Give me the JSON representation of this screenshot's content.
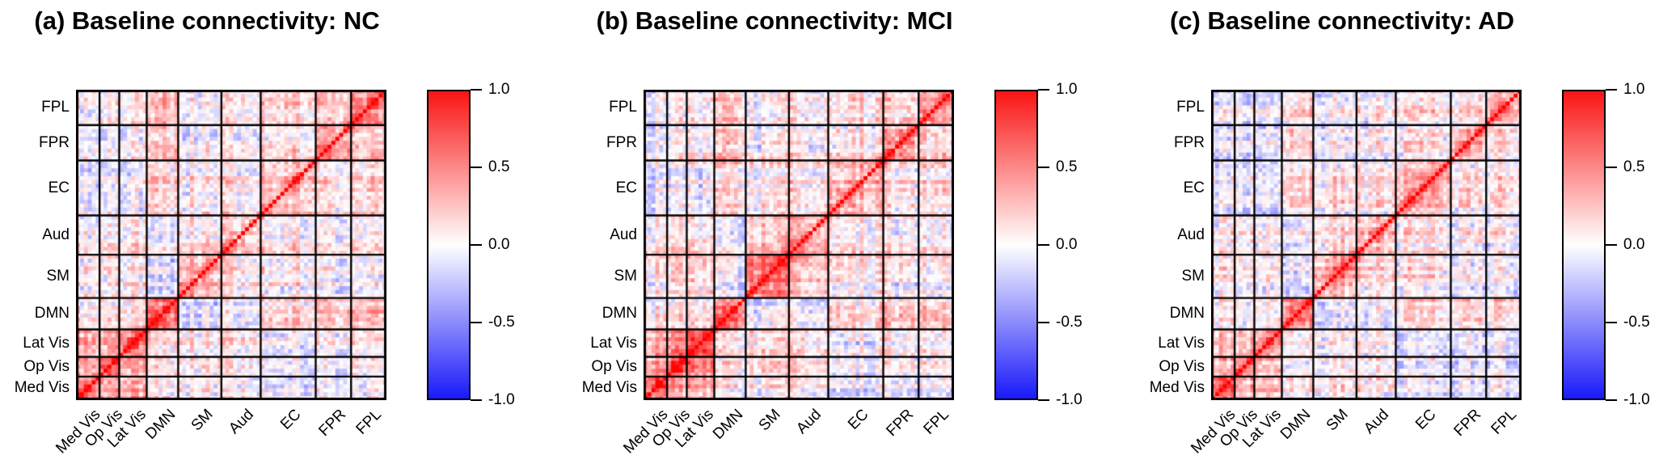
{
  "figure": {
    "background": "#ffffff",
    "description_visible_text_only": true
  },
  "chart_data": {
    "type": "heatmap",
    "subtype": "functional-connectivity-correlation-matrices",
    "colormap": {
      "negative": "#1919fa",
      "zero": "#ffffff",
      "positive": "#fa1414",
      "value_range": [
        -1.0,
        1.0
      ]
    },
    "colorbar": {
      "tick_labels": [
        "1.0",
        "0.5",
        "0.0",
        "-0.5",
        "-1.0"
      ],
      "tick_values": [
        1.0,
        0.5,
        0.0,
        -0.5,
        -1.0
      ],
      "orientation": "vertical",
      "position": "right-of-matrix"
    },
    "x_axis_order_left_to_right": [
      "Med Vis",
      "Op Vis",
      "Lat Vis",
      "DMN",
      "SM",
      "Aud",
      "EC",
      "FPR",
      "FPL"
    ],
    "y_axis_order_top_to_bottom": [
      "FPL",
      "FPR",
      "EC",
      "Aud",
      "SM",
      "DMN",
      "Lat Vis",
      "Op Vis",
      "Med Vis"
    ],
    "network_node_counts_x_order": [
      6,
      5,
      7,
      8,
      11,
      10,
      14,
      9,
      9
    ],
    "grid": "black block boundaries between networks, black outer border",
    "diagonal_value": 1.0,
    "panels": [
      {
        "id": "a",
        "title": "(a) Baseline connectivity: NC",
        "group": "NC",
        "seed": 11,
        "block_means_x_order": [
          [
            0.5,
            0.34,
            0.3,
            0.04,
            0.1,
            0.08,
            -0.06,
            -0.08,
            -0.05
          ],
          [
            0.34,
            0.48,
            0.32,
            0.02,
            0.12,
            0.1,
            -0.05,
            -0.06,
            -0.04
          ],
          [
            0.3,
            0.32,
            0.42,
            0.04,
            0.08,
            0.06,
            -0.08,
            -0.05,
            -0.03
          ],
          [
            0.04,
            0.02,
            0.04,
            0.36,
            -0.13,
            -0.09,
            0.1,
            0.13,
            0.13
          ],
          [
            0.1,
            0.12,
            0.08,
            -0.13,
            0.34,
            0.16,
            0.06,
            -0.03,
            -0.03
          ],
          [
            0.08,
            0.1,
            0.06,
            -0.09,
            0.16,
            0.24,
            0.09,
            0.02,
            0.02
          ],
          [
            -0.06,
            -0.05,
            -0.08,
            0.1,
            0.06,
            0.09,
            0.22,
            0.06,
            0.09
          ],
          [
            -0.08,
            -0.06,
            -0.05,
            0.13,
            -0.03,
            0.02,
            0.06,
            0.26,
            0.11
          ],
          [
            -0.05,
            -0.04,
            -0.03,
            0.13,
            -0.03,
            0.02,
            0.09,
            0.11,
            0.26
          ]
        ]
      },
      {
        "id": "b",
        "title": "(b) Baseline connectivity: MCI",
        "group": "MCI",
        "seed": 23,
        "block_means_x_order": [
          [
            0.52,
            0.36,
            0.3,
            0.03,
            0.08,
            0.08,
            -0.05,
            -0.06,
            -0.04
          ],
          [
            0.36,
            0.5,
            0.34,
            0.02,
            0.1,
            0.1,
            -0.06,
            -0.05,
            -0.03
          ],
          [
            0.3,
            0.34,
            0.44,
            0.03,
            0.06,
            0.06,
            -0.09,
            -0.06,
            -0.03
          ],
          [
            0.03,
            0.02,
            0.03,
            0.4,
            -0.12,
            -0.08,
            0.12,
            0.14,
            0.13
          ],
          [
            0.08,
            0.1,
            0.06,
            -0.12,
            0.46,
            0.22,
            0.08,
            -0.02,
            -0.02
          ],
          [
            0.08,
            0.1,
            0.06,
            -0.08,
            0.22,
            0.3,
            0.1,
            0.03,
            0.03
          ],
          [
            -0.05,
            -0.06,
            -0.09,
            0.12,
            0.08,
            0.1,
            0.26,
            0.07,
            0.1
          ],
          [
            -0.06,
            -0.05,
            -0.06,
            0.14,
            -0.02,
            0.03,
            0.07,
            0.3,
            0.12
          ],
          [
            -0.04,
            -0.03,
            -0.03,
            0.13,
            -0.02,
            0.03,
            0.1,
            0.12,
            0.28
          ]
        ]
      },
      {
        "id": "c",
        "title": "(c) Baseline connectivity: AD",
        "group": "AD",
        "seed": 37,
        "block_means_x_order": [
          [
            0.46,
            0.32,
            0.28,
            0.04,
            0.08,
            0.06,
            -0.07,
            -0.08,
            -0.05
          ],
          [
            0.32,
            0.44,
            0.3,
            0.02,
            0.08,
            0.08,
            -0.07,
            -0.06,
            -0.04
          ],
          [
            0.28,
            0.3,
            0.4,
            0.03,
            0.06,
            0.05,
            -0.1,
            -0.07,
            -0.04
          ],
          [
            0.04,
            0.02,
            0.03,
            0.36,
            -0.11,
            -0.08,
            0.11,
            0.12,
            0.12
          ],
          [
            0.08,
            0.08,
            0.06,
            -0.11,
            0.32,
            0.15,
            0.06,
            -0.03,
            -0.03
          ],
          [
            0.06,
            0.08,
            0.05,
            -0.08,
            0.15,
            0.24,
            0.08,
            0.02,
            0.02
          ],
          [
            -0.07,
            -0.07,
            -0.1,
            0.11,
            0.06,
            0.08,
            0.24,
            0.06,
            0.09
          ],
          [
            -0.08,
            -0.06,
            -0.07,
            0.12,
            -0.03,
            0.02,
            0.06,
            0.26,
            0.11
          ],
          [
            -0.05,
            -0.04,
            -0.04,
            0.12,
            -0.03,
            0.02,
            0.09,
            0.11,
            0.26
          ]
        ]
      }
    ]
  }
}
